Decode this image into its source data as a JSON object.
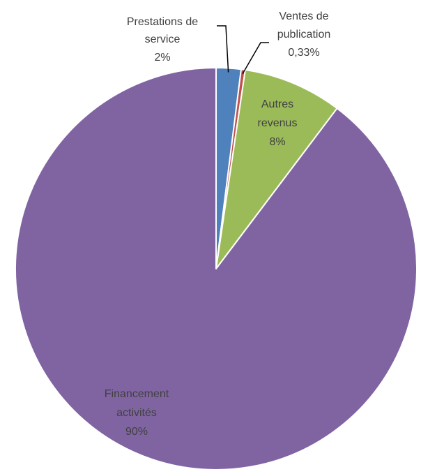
{
  "chart_data": {
    "type": "pie",
    "title": "",
    "slices": [
      {
        "name": "Prestations de service",
        "value": 2,
        "label_lines": [
          "Prestations de",
          "service"
        ],
        "value_label": "2%",
        "color": "#4f81bd"
      },
      {
        "name": "Ventes de publication",
        "value": 0.33,
        "label_lines": [
          "Ventes de",
          "publication"
        ],
        "value_label": "0,33%",
        "color": "#c0504d"
      },
      {
        "name": "Autres revenus",
        "value": 8,
        "label_lines": [
          "Autres",
          "revenus"
        ],
        "value_label": "8%",
        "color": "#9bbb59"
      },
      {
        "name": "Financement activités",
        "value": 90,
        "label_lines": [
          "Financement",
          "activités"
        ],
        "value_label": "90%",
        "color": "#8064a2"
      }
    ],
    "start_angle": "12 o'clock",
    "direction": "clockwise",
    "slice_border": "#ffffff",
    "leader_line_color": "#000000",
    "legend": "none"
  }
}
